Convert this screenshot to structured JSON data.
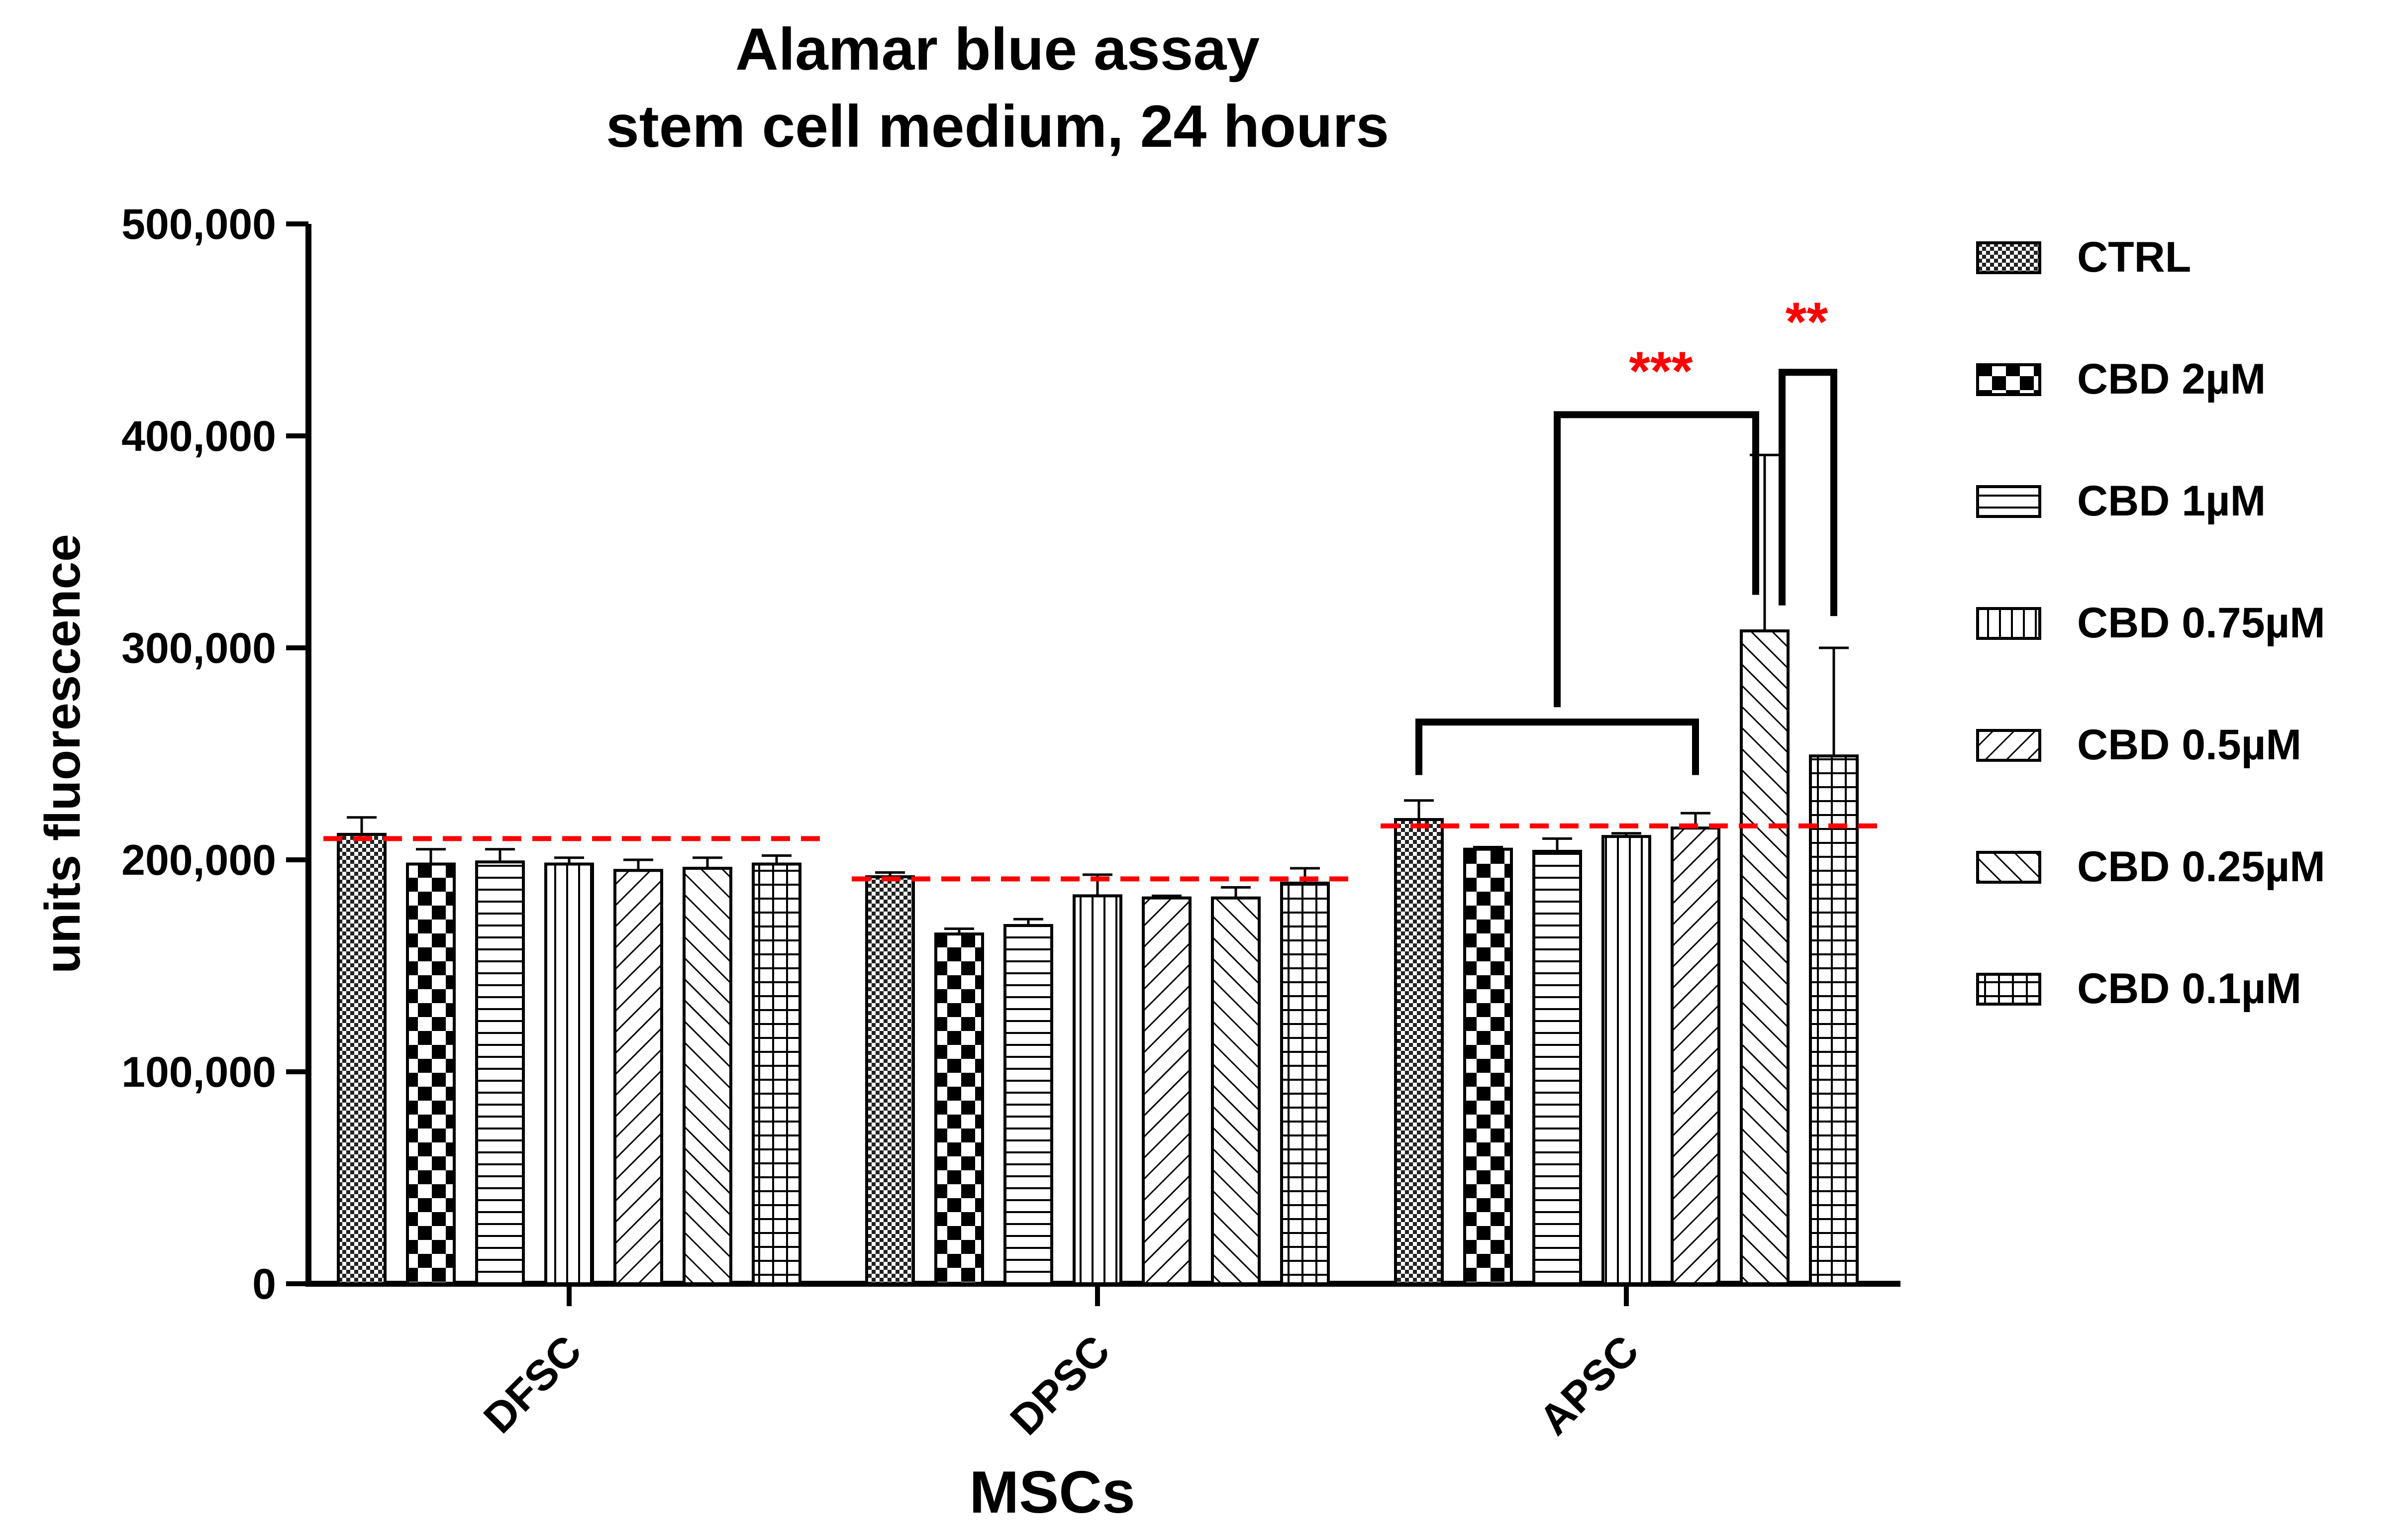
{
  "chart_data": {
    "type": "bar",
    "title": "Alamar blue assay",
    "subtitle": "stem cell medium, 24 hours",
    "xlabel": "MSCs",
    "ylabel": "units fluorescence",
    "ylim": [
      0,
      500000
    ],
    "yticks": [
      0,
      100000,
      200000,
      300000,
      400000,
      500000
    ],
    "ytick_labels": [
      "0",
      "100,000",
      "200,000",
      "300,000",
      "400,000",
      "500,000"
    ],
    "grid": false,
    "legend_position": "right",
    "categories": [
      "DFSC",
      "DPSC",
      "APSC"
    ],
    "series": [
      {
        "name": "CTRL",
        "pattern": "dots",
        "values": [
          212000,
          192000,
          219000
        ],
        "errors": [
          8000,
          2000,
          9000
        ]
      },
      {
        "name": "CBD 2µM",
        "pattern": "checker",
        "values": [
          198000,
          165000,
          205000
        ],
        "errors": [
          7000,
          2500,
          1000
        ]
      },
      {
        "name": "CBD 1µM",
        "pattern": "hlines",
        "values": [
          199000,
          169000,
          204000
        ],
        "errors": [
          6000,
          3000,
          6000
        ]
      },
      {
        "name": "CBD 0.75µM",
        "pattern": "vlines",
        "values": [
          198000,
          183000,
          211000
        ],
        "errors": [
          3000,
          10000,
          1500
        ]
      },
      {
        "name": "CBD 0.5µM",
        "pattern": "diag-up",
        "values": [
          195000,
          182000,
          215000
        ],
        "errors": [
          5000,
          1000,
          7000
        ]
      },
      {
        "name": "CBD 0.25µM",
        "pattern": "diag-down",
        "values": [
          196000,
          182000,
          308000
        ],
        "errors": [
          5000,
          5000,
          83000
        ]
      },
      {
        "name": "CBD 0.1µM",
        "pattern": "grid",
        "values": [
          198000,
          189000,
          249000
        ],
        "errors": [
          4000,
          7000,
          51000
        ]
      }
    ],
    "reference_lines": [
      {
        "category": "DFSC",
        "value": 210000,
        "color": "#ff0000"
      },
      {
        "category": "DPSC",
        "value": 191000,
        "color": "#ff0000"
      },
      {
        "category": "APSC",
        "value": 216000,
        "color": "#ff0000"
      }
    ],
    "annotations": [
      {
        "text": "***",
        "category": "APSC",
        "color": "#ff0000",
        "from_series": [
          0,
          4
        ],
        "to_series": 5
      },
      {
        "text": "**",
        "category": "APSC",
        "color": "#ff0000",
        "from_series": [
          5
        ],
        "to_series": 6
      }
    ]
  }
}
